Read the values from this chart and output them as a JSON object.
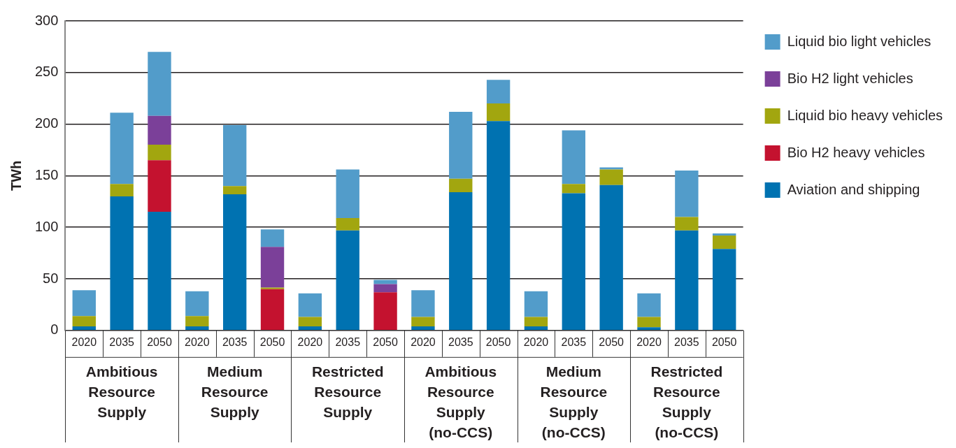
{
  "chart_data": {
    "type": "bar",
    "stacked": true,
    "ylabel": "TWh",
    "categories": [
      "2020",
      "2035",
      "2050",
      "2020",
      "2035",
      "2050",
      "2020",
      "2035",
      "2050",
      "2020",
      "2035",
      "2050",
      "2020",
      "2035",
      "2050",
      "2020",
      "2035",
      "2050"
    ],
    "annotations": [
      "Ambitious Resource Supply",
      "Medium Resource Supply",
      "Restricted Resource Supply",
      "Ambitious Resource Supply (no-CCS)",
      "Medium Resource Supply (no-CCS)",
      "Restricted Resource Supply (no-CCS)"
    ],
    "series": [
      {
        "name": "Aviation and shipping",
        "color": "#0072b1",
        "values": [
          4,
          130,
          115,
          4,
          132,
          null,
          4,
          97,
          null,
          4,
          134,
          203,
          4,
          133,
          141,
          3,
          97,
          79
        ]
      },
      {
        "name": "Bio H2 heavy vehicles",
        "color": "#c4122f",
        "values": [
          null,
          null,
          50,
          null,
          null,
          40,
          null,
          null,
          37,
          null,
          null,
          null,
          null,
          null,
          null,
          null,
          null,
          null
        ]
      },
      {
        "name": "Liquid bio heavy vehicles",
        "color": "#a2a60f",
        "values": [
          10,
          12,
          15,
          10,
          8,
          1.5,
          9,
          12,
          null,
          9,
          13,
          17,
          9,
          9,
          15,
          10,
          13,
          13
        ]
      },
      {
        "name": "Bio H2 light vehicles",
        "color": "#7b4099",
        "values": [
          null,
          null,
          28,
          null,
          null,
          39.5,
          null,
          null,
          8,
          null,
          null,
          null,
          null,
          null,
          null,
          null,
          null,
          null
        ]
      },
      {
        "name": "Liquid bio light vehicles",
        "color": "#529cca",
        "values": [
          25,
          69,
          62,
          24,
          59,
          17,
          23,
          47,
          4,
          26,
          65,
          23,
          25,
          52,
          2,
          23,
          45,
          2
        ]
      }
    ],
    "ylim": [
      0,
      300
    ],
    "yticks": [
      0,
      50,
      100,
      150,
      200,
      250,
      300
    ],
    "grid": "y",
    "legend": "right"
  }
}
